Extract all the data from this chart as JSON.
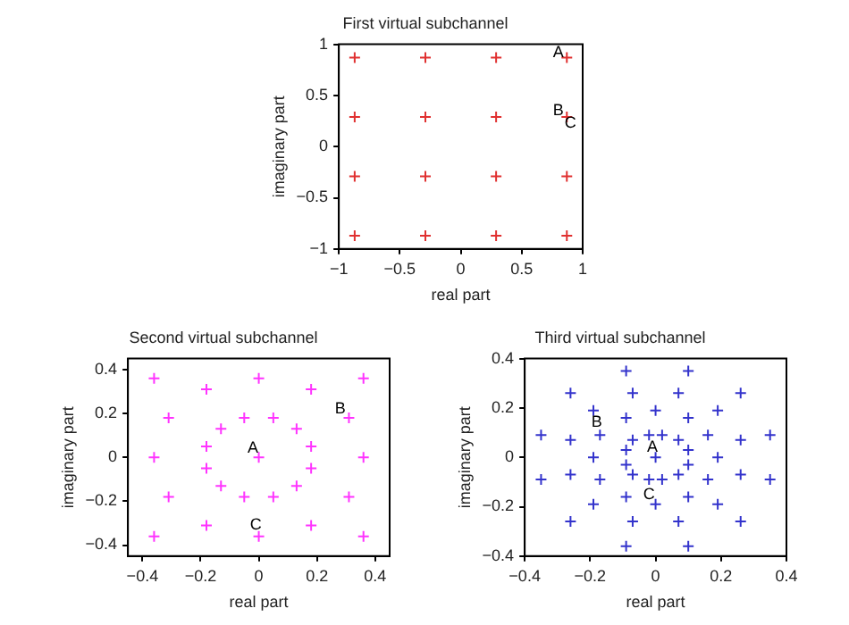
{
  "chart_data": [
    {
      "type": "scatter",
      "title": "First virtual subchannel",
      "xlabel": "real part",
      "ylabel": "imaginary part",
      "xlim": [
        -1,
        1
      ],
      "ylim": [
        -1,
        1
      ],
      "xticks": [
        -1,
        -0.5,
        0,
        0.5,
        1
      ],
      "yticks": [
        -1,
        -0.5,
        0,
        0.5,
        1
      ],
      "grid": false,
      "legend": false,
      "marker": "cross",
      "series": [
        {
          "color": "#e03030",
          "x": [
            -0.87,
            -0.29,
            0.29,
            0.87,
            -0.87,
            -0.29,
            0.29,
            0.87,
            -0.87,
            -0.29,
            0.29,
            0.87,
            -0.87,
            -0.29,
            0.29,
            0.87
          ],
          "values": [
            0.87,
            0.87,
            0.87,
            0.87,
            0.29,
            0.29,
            0.29,
            0.29,
            -0.29,
            -0.29,
            -0.29,
            -0.29,
            -0.87,
            -0.87,
            -0.87,
            -0.87
          ]
        }
      ],
      "annotations": [
        {
          "text": "A",
          "x": 0.8,
          "y": 0.92
        },
        {
          "text": "B",
          "x": 0.8,
          "y": 0.35
        },
        {
          "text": "C",
          "x": 0.9,
          "y": 0.23
        }
      ]
    },
    {
      "type": "scatter",
      "title": "Second virtual subchannel",
      "xlabel": "real part",
      "ylabel": "imaginary part",
      "xlim": [
        -0.45,
        0.45
      ],
      "ylim": [
        -0.45,
        0.45
      ],
      "xticks": [
        -0.4,
        -0.2,
        0,
        0.2,
        0.4
      ],
      "yticks": [
        -0.4,
        -0.2,
        0,
        0.2,
        0.4
      ],
      "grid": false,
      "legend": false,
      "marker": "cross",
      "series": [
        {
          "color": "#ff33ff",
          "x": [
            -0.36,
            -0.18,
            0,
            0.18,
            0.36,
            -0.31,
            -0.05,
            0.05,
            0.31,
            -0.13,
            0.13,
            -0.18,
            0.18,
            -0.36,
            0,
            0.36,
            -0.18,
            0.18,
            -0.13,
            0.13,
            -0.31,
            -0.05,
            0.05,
            0.31,
            -0.36,
            -0.18,
            0,
            0.18,
            0.36
          ],
          "values": [
            0.36,
            0.31,
            0.36,
            0.31,
            0.36,
            0.18,
            0.18,
            0.18,
            0.18,
            0.13,
            0.13,
            0.05,
            0.05,
            0,
            0,
            0,
            -0.05,
            -0.05,
            -0.13,
            -0.13,
            -0.18,
            -0.18,
            -0.18,
            -0.18,
            -0.36,
            -0.31,
            -0.36,
            -0.31,
            -0.36
          ]
        }
      ],
      "annotations": [
        {
          "text": "A",
          "x": -0.02,
          "y": 0.04
        },
        {
          "text": "B",
          "x": 0.28,
          "y": 0.22
        },
        {
          "text": "C",
          "x": -0.01,
          "y": -0.31
        }
      ]
    },
    {
      "type": "scatter",
      "title": "Third virtual subchannel",
      "xlabel": "real part",
      "ylabel": "imaginary part",
      "xlim": [
        -0.4,
        0.4
      ],
      "ylim": [
        -0.4,
        0.4
      ],
      "xticks": [
        -0.4,
        -0.2,
        0,
        0.2,
        0.4
      ],
      "yticks": [
        -0.4,
        -0.2,
        0,
        0.2,
        0.4
      ],
      "grid": false,
      "legend": false,
      "marker": "cross",
      "series": [
        {
          "color": "#3333cc",
          "x": [
            -0.09,
            0.1,
            -0.26,
            -0.07,
            0.07,
            0.26,
            -0.19,
            -0.09,
            0,
            0.1,
            0.19,
            -0.35,
            -0.26,
            -0.17,
            -0.07,
            -0.02,
            0.02,
            0.07,
            0.16,
            0.26,
            0.35,
            -0.09,
            0.1,
            -0.19,
            0,
            0.19,
            -0.09,
            0.1,
            -0.35,
            -0.26,
            -0.17,
            -0.07,
            -0.02,
            0.02,
            0.07,
            0.16,
            0.26,
            0.35,
            -0.19,
            -0.09,
            0,
            0.1,
            0.19,
            -0.26,
            -0.07,
            0.07,
            0.26,
            -0.09,
            0.1
          ],
          "values": [
            0.35,
            0.35,
            0.26,
            0.26,
            0.26,
            0.26,
            0.19,
            0.16,
            0.19,
            0.16,
            0.19,
            0.09,
            0.07,
            0.09,
            0.07,
            0.09,
            0.09,
            0.07,
            0.09,
            0.07,
            0.09,
            0.03,
            0.03,
            0,
            0,
            0,
            -0.03,
            -0.03,
            -0.09,
            -0.07,
            -0.09,
            -0.07,
            -0.09,
            -0.09,
            -0.07,
            -0.09,
            -0.07,
            -0.09,
            -0.19,
            -0.16,
            -0.19,
            -0.16,
            -0.19,
            -0.26,
            -0.26,
            -0.26,
            -0.26,
            -0.36,
            -0.36
          ]
        }
      ],
      "annotations": [
        {
          "text": "A",
          "x": -0.01,
          "y": 0.04
        },
        {
          "text": "B",
          "x": -0.18,
          "y": 0.14
        },
        {
          "text": "C",
          "x": -0.02,
          "y": -0.15
        }
      ]
    }
  ]
}
